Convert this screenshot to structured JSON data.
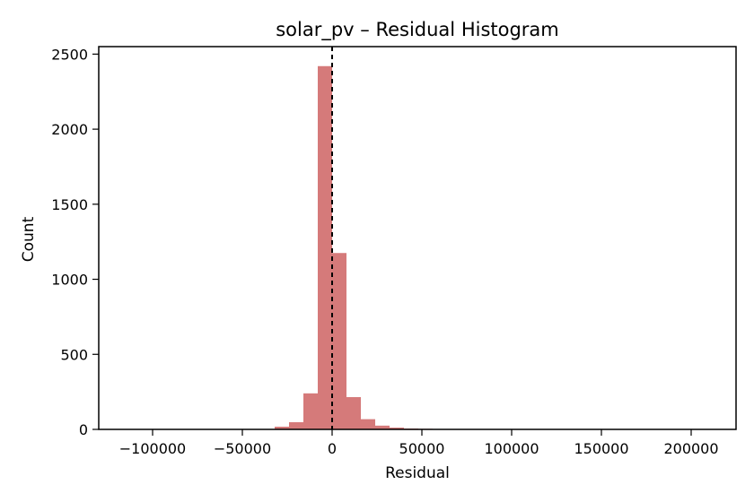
{
  "chart_data": {
    "type": "histogram",
    "title": "solar_pv – Residual Histogram",
    "xlabel": "Residual",
    "ylabel": "Count",
    "xlim": [
      -130000,
      225000
    ],
    "ylim": [
      0,
      2550
    ],
    "x_ticks": [
      {
        "value": -100000,
        "label": "−100000"
      },
      {
        "value": -50000,
        "label": "−50000"
      },
      {
        "value": 0,
        "label": "0"
      },
      {
        "value": 50000,
        "label": "50000"
      },
      {
        "value": 100000,
        "label": "100000"
      },
      {
        "value": 150000,
        "label": "150000"
      },
      {
        "value": 200000,
        "label": "200000"
      }
    ],
    "y_ticks": [
      {
        "value": 0,
        "label": "0"
      },
      {
        "value": 500,
        "label": "500"
      },
      {
        "value": 1000,
        "label": "1000"
      },
      {
        "value": 1500,
        "label": "1500"
      },
      {
        "value": 2000,
        "label": "2000"
      },
      {
        "value": 2500,
        "label": "2500"
      }
    ],
    "bins": [
      {
        "start": -32000,
        "end": -24000,
        "count": 18
      },
      {
        "start": -24000,
        "end": -16000,
        "count": 48
      },
      {
        "start": -16000,
        "end": -8000,
        "count": 240
      },
      {
        "start": -8000,
        "end": 0,
        "count": 2420
      },
      {
        "start": 0,
        "end": 8000,
        "count": 1175
      },
      {
        "start": 8000,
        "end": 16000,
        "count": 215
      },
      {
        "start": 16000,
        "end": 24000,
        "count": 68
      },
      {
        "start": 24000,
        "end": 32000,
        "count": 25
      },
      {
        "start": 32000,
        "end": 40000,
        "count": 12
      },
      {
        "start": 40000,
        "end": 48000,
        "count": 6
      },
      {
        "start": 48000,
        "end": 56000,
        "count": 4
      },
      {
        "start": 56000,
        "end": 64000,
        "count": 3
      },
      {
        "start": 64000,
        "end": 72000,
        "count": 2
      },
      {
        "start": 72000,
        "end": 80000,
        "count": 1
      }
    ],
    "reference_line": {
      "x": 0,
      "style": "dashed",
      "color": "#000000"
    },
    "colors": {
      "bar": "#d57a7a",
      "axis": "#000000",
      "background": "#ffffff"
    },
    "grid": false,
    "legend": "none"
  }
}
